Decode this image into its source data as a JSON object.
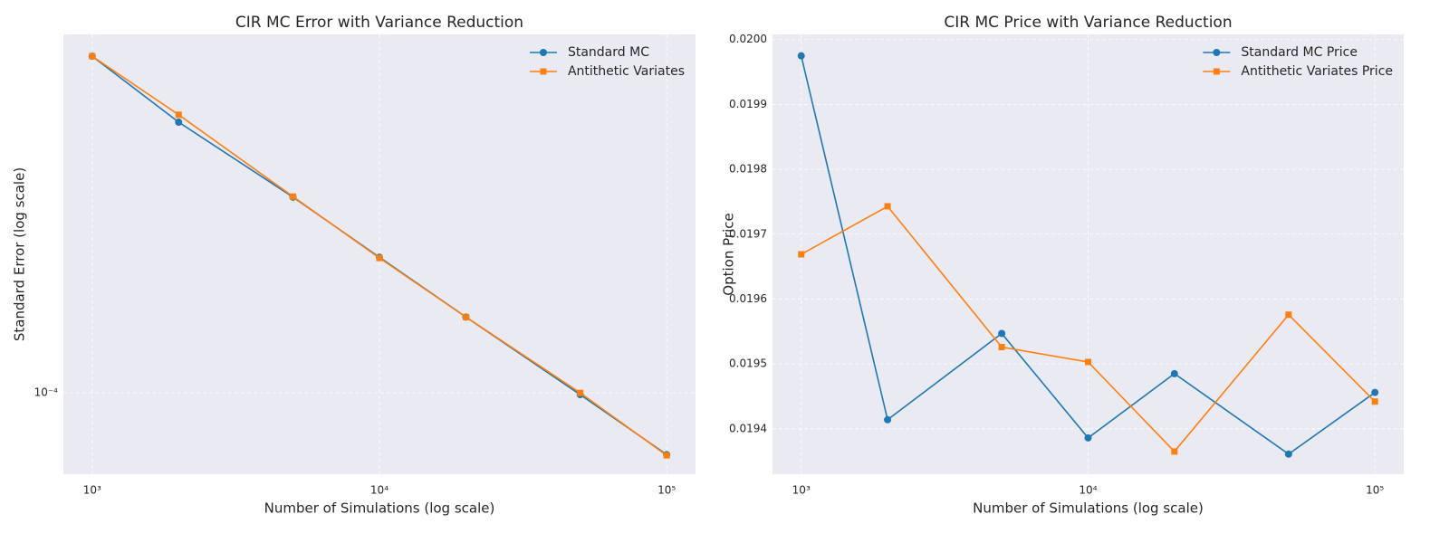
{
  "chart_data": [
    {
      "type": "line",
      "title": "CIR MC Error with Variance Reduction",
      "xlabel": "Number of Simulations (log scale)",
      "ylabel": "Standard Error (log scale)",
      "x": [
        1000,
        2000,
        5000,
        10000,
        20000,
        50000,
        100000
      ],
      "series": [
        {
          "name": "Standard MC",
          "color": "#1f77b4",
          "marker": "circle",
          "values": [
            0.0007,
            0.000478,
            0.00031,
            0.000219,
            0.000155,
            9.9e-05,
            7e-05
          ]
        },
        {
          "name": "Antithetic Variates",
          "color": "#ff7f0e",
          "marker": "square",
          "values": [
            0.0007,
            0.000499,
            0.000311,
            0.000218,
            0.000155,
            0.0001,
            6.97e-05
          ]
        }
      ],
      "xlim": [
        794,
        126000
      ],
      "ylim": [
        6.25e-05,
        0.000794
      ],
      "xticks": [
        {
          "value": 1000,
          "label": "10³"
        },
        {
          "value": 10000,
          "label": "10⁴"
        },
        {
          "value": 100000,
          "label": "10⁵"
        }
      ],
      "yticks": [
        {
          "value": 0.0001,
          "label": "10⁻⁴"
        }
      ],
      "log_x": true,
      "log_y": true,
      "grid": true,
      "legend": "upper right"
    },
    {
      "type": "line",
      "title": "CIR MC Price with Variance Reduction",
      "xlabel": "Number of Simulations (log scale)",
      "ylabel": "Option Price",
      "x": [
        1000,
        2000,
        5000,
        10000,
        20000,
        50000,
        100000
      ],
      "series": [
        {
          "name": "Standard MC Price",
          "color": "#1f77b4",
          "marker": "circle",
          "values": [
            0.019975,
            0.019414,
            0.019547,
            0.019386,
            0.019485,
            0.019361,
            0.019456
          ]
        },
        {
          "name": "Antithetic Variates Price",
          "color": "#ff7f0e",
          "marker": "square",
          "values": [
            0.019669,
            0.019743,
            0.019526,
            0.019503,
            0.019365,
            0.019576,
            0.019442
          ]
        }
      ],
      "xlim": [
        794,
        126000
      ],
      "ylim": [
        0.01933,
        0.020008
      ],
      "xticks": [
        {
          "value": 1000,
          "label": "10³"
        },
        {
          "value": 10000,
          "label": "10⁴"
        },
        {
          "value": 100000,
          "label": "10⁵"
        }
      ],
      "yticks": [
        0.0194,
        0.0195,
        0.0196,
        0.0197,
        0.0198,
        0.0199,
        {
          "value": 0.02,
          "label": "0.0200"
        }
      ],
      "log_x": true,
      "log_y": false,
      "grid": true,
      "legend": "upper right"
    }
  ]
}
